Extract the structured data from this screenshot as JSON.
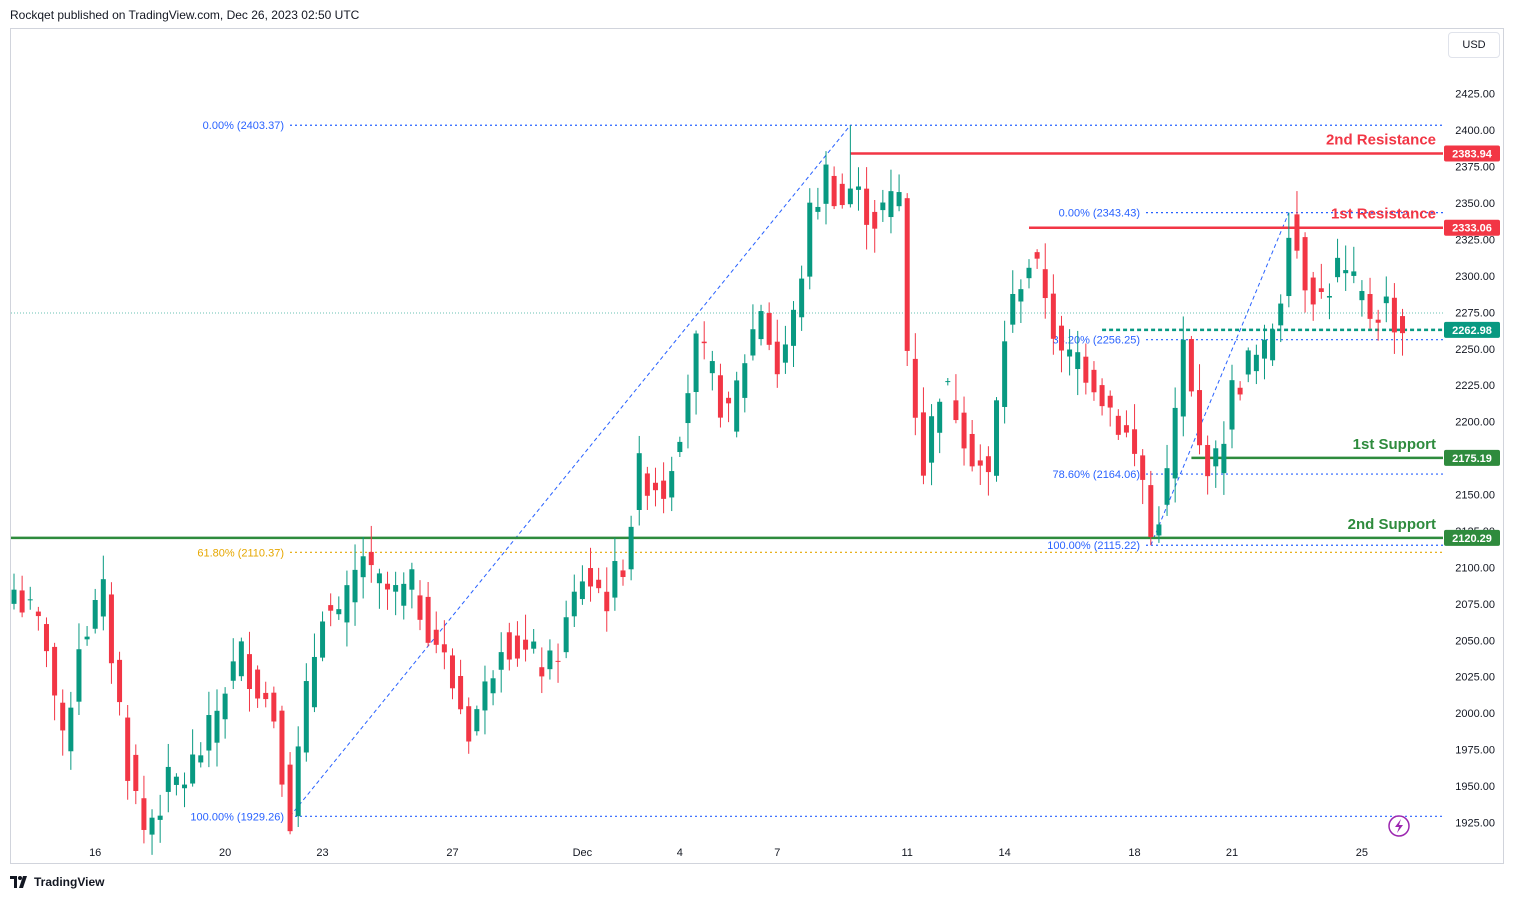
{
  "header": {
    "text": "Rockqet published on TradingView.com, Dec 26, 2023 02:50 UTC"
  },
  "currency": "USD",
  "footer": {
    "brand": "TradingView",
    "logo_icon": "tradingview-logo-icon"
  },
  "colors": {
    "up": "#089981",
    "down": "#f23645",
    "resistance": "#f23645",
    "support": "#2e8b3d",
    "fib": "#2962ff",
    "fib_gold": "#e6a700",
    "current": "#089981"
  },
  "chart_data": {
    "type": "candlestick",
    "symbol_currency": "USD",
    "y_axis": {
      "ticks": [
        1925,
        1950,
        1975,
        2000,
        2025,
        2050,
        2075,
        2100,
        2125,
        2150,
        2175,
        2200,
        2225,
        2250,
        2275,
        2300,
        2325,
        2350,
        2375,
        2400,
        2425
      ],
      "tick_labels": [
        "1925.00",
        "1950.00",
        "1975.00",
        "2000.00",
        "2025.00",
        "2050.00",
        "2075.00",
        "2100.00",
        "2125.00",
        "2150.00",
        "2175.00",
        "2200.00",
        "2225.00",
        "2250.00",
        "2275.00",
        "2300.00",
        "2325.00",
        "2350.00",
        "2375.00",
        "2400.00",
        "2425.00"
      ],
      "range": [
        1898,
        2470
      ]
    },
    "x_axis": {
      "labels": [
        "16",
        "20",
        "23",
        "27",
        "Dec",
        "4",
        "7",
        "11",
        "14",
        "18",
        "21",
        "25"
      ],
      "label_bar_index": [
        10,
        26,
        38,
        54,
        70,
        82,
        94,
        110,
        122,
        138,
        150,
        166
      ]
    },
    "levels": [
      {
        "name": "2nd Resistance",
        "value": 2383.94,
        "label": "2383.94",
        "kind": "resistance",
        "start_index": 103
      },
      {
        "name": "1st Resistance",
        "value": 2333.06,
        "label": "2333.06",
        "kind": "resistance",
        "start_index": 125
      },
      {
        "name": "1st Support",
        "value": 2175.19,
        "label": "2175.19",
        "kind": "support",
        "start_index": 145
      },
      {
        "name": "2nd Support",
        "value": 2120.29,
        "label": "2120.29",
        "kind": "support",
        "start_index": 0
      }
    ],
    "current_price": {
      "value": 2262.98,
      "label": "2262.98"
    },
    "fib_sets": [
      {
        "from": {
          "index": 34,
          "value": 1929.26
        },
        "to": {
          "index": 103,
          "value": 2403.37
        },
        "levels": [
          {
            "label": "0.00% (2403.37)",
            "value": 2403.37,
            "gold": false
          },
          {
            "label": "61.80% (2110.37)",
            "value": 2110.37,
            "gold": true
          },
          {
            "label": "100.00% (1929.26)",
            "value": 1929.26,
            "gold": false
          }
        ]
      },
      {
        "from": {
          "index": 140,
          "value": 2115.22
        },
        "to": {
          "index": 157,
          "value": 2343.43
        },
        "levels": [
          {
            "label": "0.00% (2343.43)",
            "value": 2343.43,
            "gold": false
          },
          {
            "label": "38.20% (2256.25)",
            "value": 2256.25,
            "gold": false
          },
          {
            "label": "78.60% (2164.06)",
            "value": 2164.06,
            "gold": false
          },
          {
            "label": "100.00% (2115.22)",
            "value": 2115.22,
            "gold": false
          }
        ]
      }
    ],
    "close_anchors": [
      [
        0,
        2085
      ],
      [
        4,
        2050
      ],
      [
        6,
        1975
      ],
      [
        8,
        2050
      ],
      [
        11,
        2080
      ],
      [
        14,
        1965
      ],
      [
        16,
        1920
      ],
      [
        19,
        1950
      ],
      [
        21,
        1955
      ],
      [
        24,
        1985
      ],
      [
        26,
        2020
      ],
      [
        28,
        2040
      ],
      [
        30,
        2020
      ],
      [
        32,
        2000
      ],
      [
        34,
        1930
      ],
      [
        36,
        2010
      ],
      [
        38,
        2075
      ],
      [
        40,
        2060
      ],
      [
        43,
        2110
      ],
      [
        44,
        2090
      ],
      [
        47,
        2080
      ],
      [
        49,
        2085
      ],
      [
        52,
        2050
      ],
      [
        54,
        2020
      ],
      [
        56,
        1990
      ],
      [
        58,
        2015
      ],
      [
        60,
        2055
      ],
      [
        63,
        2040
      ],
      [
        66,
        2030
      ],
      [
        68,
        2060
      ],
      [
        70,
        2095
      ],
      [
        73,
        2080
      ],
      [
        75,
        2105
      ],
      [
        77,
        2165
      ],
      [
        80,
        2155
      ],
      [
        82,
        2200
      ],
      [
        84,
        2250
      ],
      [
        86,
        2230
      ],
      [
        88,
        2200
      ],
      [
        90,
        2245
      ],
      [
        92,
        2280
      ],
      [
        94,
        2235
      ],
      [
        96,
        2270
      ],
      [
        98,
        2340
      ],
      [
        100,
        2370
      ],
      [
        102,
        2350
      ],
      [
        103,
        2360
      ],
      [
        106,
        2340
      ],
      [
        109,
        2355
      ],
      [
        110,
        2250
      ],
      [
        112,
        2170
      ],
      [
        114,
        2225
      ],
      [
        116,
        2210
      ],
      [
        118,
        2180
      ],
      [
        120,
        2160
      ],
      [
        122,
        2260
      ],
      [
        124,
        2300
      ],
      [
        125,
        2310
      ],
      [
        127,
        2290
      ],
      [
        129,
        2240
      ],
      [
        131,
        2245
      ],
      [
        133,
        2230
      ],
      [
        135,
        2210
      ],
      [
        137,
        2190
      ],
      [
        139,
        2160
      ],
      [
        140,
        2120
      ],
      [
        142,
        2160
      ],
      [
        144,
        2250
      ],
      [
        146,
        2180
      ],
      [
        148,
        2170
      ],
      [
        150,
        2220
      ],
      [
        152,
        2240
      ],
      [
        154,
        2245
      ],
      [
        156,
        2290
      ],
      [
        157,
        2340
      ],
      [
        159,
        2300
      ],
      [
        161,
        2285
      ],
      [
        163,
        2305
      ],
      [
        165,
        2290
      ],
      [
        167,
        2275
      ],
      [
        169,
        2280
      ],
      [
        171,
        2263
      ]
    ]
  }
}
